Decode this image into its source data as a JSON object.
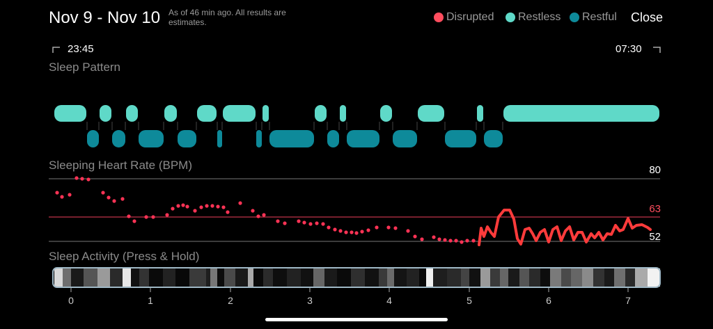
{
  "header": {
    "title": "Nov 9 - Nov 10",
    "note": "As of 46 min ago. All results are estimates.",
    "close_label": "Close"
  },
  "legend": [
    {
      "label": "Disrupted",
      "color": "#ff4d5e"
    },
    {
      "label": "Restless",
      "color": "#5fd9c8"
    },
    {
      "label": "Restful",
      "color": "#0e8a9a"
    }
  ],
  "time_range": {
    "start": "23:45",
    "end": "07:30"
  },
  "sections": {
    "sleep_pattern": "Sleep Pattern",
    "heart_rate": "Sleeping Heart Rate (BPM)",
    "activity": "Sleep Activity (Press & Hold)"
  },
  "heart_rate": {
    "max_label": "80",
    "avg_label": "63",
    "min_label": "52",
    "max": 80,
    "avg": 63,
    "min": 52
  },
  "x_axis": {
    "ticks": [
      "0",
      "1",
      "2",
      "3",
      "4",
      "5",
      "6",
      "7"
    ]
  },
  "colors": {
    "restless": "#5fd9c8",
    "restful": "#0e8a9a",
    "disrupted": "#ff4d5e",
    "hr_line": "#ff3b3b",
    "dots": "#ff3355"
  }
}
